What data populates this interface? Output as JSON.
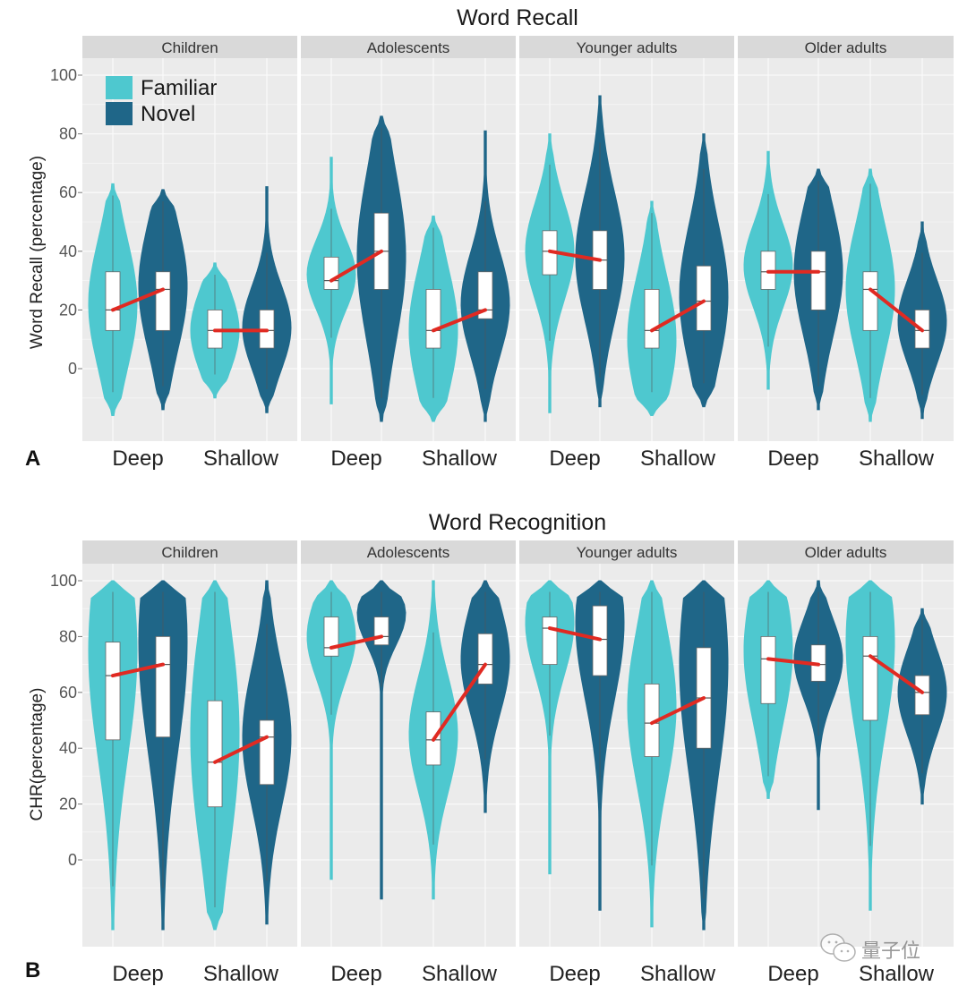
{
  "colors": {
    "familiar": "#4ec8cf",
    "novel": "#1f6688",
    "median_link": "#e02a22",
    "panel_bg": "#ebebeb",
    "strip_bg": "#d9d9d9",
    "box": "#ffffff"
  },
  "legend": {
    "items": [
      {
        "name": "Familiar",
        "color": "#4ec8cf"
      },
      {
        "name": "Novel",
        "color": "#1f6688"
      }
    ],
    "placement": "top-left (inside first panel of A)"
  },
  "watermark": {
    "text": "量子位",
    "icon": "wechat-icon"
  },
  "chart_data": [
    {
      "id": "A",
      "panel_letter": "A",
      "type": "violin",
      "title": "Word Recall",
      "ylabel": "Word Recall (percentage)",
      "xlabel": "",
      "ylim": [
        -25,
        108
      ],
      "yticks": [
        0,
        20,
        40,
        60,
        80,
        100
      ],
      "grid": true,
      "facets": [
        "Children",
        "Adolescents",
        "Younger adults",
        "Older adults"
      ],
      "categories": [
        "Deep",
        "Shallow"
      ],
      "series_names": [
        "Familiar",
        "Novel"
      ],
      "groups": [
        {
          "facet": "Children",
          "category": "Deep",
          "series": "Familiar",
          "q1": 13,
          "median": 20,
          "q3": 33,
          "min": -16,
          "max": 63,
          "peak": 22
        },
        {
          "facet": "Children",
          "category": "Deep",
          "series": "Novel",
          "q1": 13,
          "median": 27,
          "q3": 33,
          "min": -14,
          "max": 61,
          "peak": 28
        },
        {
          "facet": "Children",
          "category": "Shallow",
          "series": "Familiar",
          "q1": 7,
          "median": 13,
          "q3": 20,
          "min": -10,
          "max": 36,
          "peak": 13
        },
        {
          "facet": "Children",
          "category": "Shallow",
          "series": "Novel",
          "q1": 7,
          "median": 13,
          "q3": 20,
          "min": -15,
          "max": 62,
          "peak": 14
        },
        {
          "facet": "Adolescents",
          "category": "Deep",
          "series": "Familiar",
          "q1": 27,
          "median": 30,
          "q3": 38,
          "min": -12,
          "max": 72,
          "peak": 32
        },
        {
          "facet": "Adolescents",
          "category": "Deep",
          "series": "Novel",
          "q1": 27,
          "median": 40,
          "q3": 53,
          "min": -18,
          "max": 86,
          "peak": 38
        },
        {
          "facet": "Adolescents",
          "category": "Shallow",
          "series": "Familiar",
          "q1": 7,
          "median": 13,
          "q3": 27,
          "min": -18,
          "max": 52,
          "peak": 13
        },
        {
          "facet": "Adolescents",
          "category": "Shallow",
          "series": "Novel",
          "q1": 17,
          "median": 20,
          "q3": 33,
          "min": -18,
          "max": 81,
          "peak": 22
        },
        {
          "facet": "Younger adults",
          "category": "Deep",
          "series": "Familiar",
          "q1": 32,
          "median": 40,
          "q3": 47,
          "min": -15,
          "max": 80,
          "peak": 40
        },
        {
          "facet": "Younger adults",
          "category": "Deep",
          "series": "Novel",
          "q1": 27,
          "median": 37,
          "q3": 47,
          "min": -13,
          "max": 93,
          "peak": 38
        },
        {
          "facet": "Younger adults",
          "category": "Shallow",
          "series": "Familiar",
          "q1": 7,
          "median": 13,
          "q3": 27,
          "min": -16,
          "max": 57,
          "peak": 10
        },
        {
          "facet": "Younger adults",
          "category": "Shallow",
          "series": "Novel",
          "q1": 13,
          "median": 23,
          "q3": 35,
          "min": -13,
          "max": 80,
          "peak": 25
        },
        {
          "facet": "Older adults",
          "category": "Deep",
          "series": "Familiar",
          "q1": 27,
          "median": 33,
          "q3": 40,
          "min": -7,
          "max": 74,
          "peak": 35
        },
        {
          "facet": "Older adults",
          "category": "Deep",
          "series": "Novel",
          "q1": 20,
          "median": 33,
          "q3": 40,
          "min": -14,
          "max": 68,
          "peak": 33
        },
        {
          "facet": "Older adults",
          "category": "Shallow",
          "series": "Familiar",
          "q1": 13,
          "median": 27,
          "q3": 33,
          "min": -18,
          "max": 68,
          "peak": 27
        },
        {
          "facet": "Older adults",
          "category": "Shallow",
          "series": "Novel",
          "q1": 7,
          "median": 13,
          "q3": 20,
          "min": -17,
          "max": 50,
          "peak": 16
        }
      ]
    },
    {
      "id": "B",
      "panel_letter": "B",
      "type": "violin",
      "title": "Word Recognition",
      "ylabel": "CHR(percentage)",
      "xlabel": "",
      "ylim": [
        -31,
        105
      ],
      "yticks": [
        0,
        20,
        40,
        60,
        80,
        100
      ],
      "grid": true,
      "facets": [
        "Children",
        "Adolescents",
        "Younger adults",
        "Older adults"
      ],
      "categories": [
        "Deep",
        "Shallow"
      ],
      "series_names": [
        "Familiar",
        "Novel"
      ],
      "groups": [
        {
          "facet": "Children",
          "category": "Deep",
          "series": "Familiar",
          "q1": 43,
          "median": 66,
          "q3": 78,
          "min": -25,
          "max": 100,
          "peak": 75
        },
        {
          "facet": "Children",
          "category": "Deep",
          "series": "Novel",
          "q1": 44,
          "median": 70,
          "q3": 80,
          "min": -25,
          "max": 100,
          "peak": 78
        },
        {
          "facet": "Children",
          "category": "Shallow",
          "series": "Familiar",
          "q1": 19,
          "median": 35,
          "q3": 57,
          "min": -25,
          "max": 100,
          "peak": 45
        },
        {
          "facet": "Children",
          "category": "Shallow",
          "series": "Novel",
          "q1": 27,
          "median": 44,
          "q3": 50,
          "min": -23,
          "max": 100,
          "peak": 44
        },
        {
          "facet": "Adolescents",
          "category": "Deep",
          "series": "Familiar",
          "q1": 73,
          "median": 76,
          "q3": 87,
          "min": -7,
          "max": 100,
          "peak": 80
        },
        {
          "facet": "Adolescents",
          "category": "Deep",
          "series": "Novel",
          "q1": 77,
          "median": 80,
          "q3": 87,
          "min": -14,
          "max": 100,
          "peak": 88
        },
        {
          "facet": "Adolescents",
          "category": "Shallow",
          "series": "Familiar",
          "q1": 34,
          "median": 43,
          "q3": 53,
          "min": -14,
          "max": 100,
          "peak": 45
        },
        {
          "facet": "Adolescents",
          "category": "Shallow",
          "series": "Novel",
          "q1": 63,
          "median": 70,
          "q3": 81,
          "min": 17,
          "max": 100,
          "peak": 72
        },
        {
          "facet": "Younger adults",
          "category": "Deep",
          "series": "Familiar",
          "q1": 70,
          "median": 83,
          "q3": 87,
          "min": -5,
          "max": 100,
          "peak": 85
        },
        {
          "facet": "Younger adults",
          "category": "Deep",
          "series": "Novel",
          "q1": 66,
          "median": 79,
          "q3": 91,
          "min": -18,
          "max": 100,
          "peak": 85
        },
        {
          "facet": "Younger adults",
          "category": "Shallow",
          "series": "Familiar",
          "q1": 37,
          "median": 49,
          "q3": 63,
          "min": -24,
          "max": 100,
          "peak": 55
        },
        {
          "facet": "Younger adults",
          "category": "Shallow",
          "series": "Novel",
          "q1": 40,
          "median": 58,
          "q3": 76,
          "min": -25,
          "max": 100,
          "peak": 70
        },
        {
          "facet": "Older adults",
          "category": "Deep",
          "series": "Familiar",
          "q1": 56,
          "median": 72,
          "q3": 80,
          "min": 22,
          "max": 100,
          "peak": 75
        },
        {
          "facet": "Older adults",
          "category": "Deep",
          "series": "Novel",
          "q1": 64,
          "median": 70,
          "q3": 77,
          "min": 18,
          "max": 100,
          "peak": 72
        },
        {
          "facet": "Older adults",
          "category": "Shallow",
          "series": "Familiar",
          "q1": 50,
          "median": 73,
          "q3": 80,
          "min": -18,
          "max": 100,
          "peak": 78
        },
        {
          "facet": "Older adults",
          "category": "Shallow",
          "series": "Novel",
          "q1": 52,
          "median": 60,
          "q3": 66,
          "min": 20,
          "max": 90,
          "peak": 60
        }
      ]
    }
  ]
}
